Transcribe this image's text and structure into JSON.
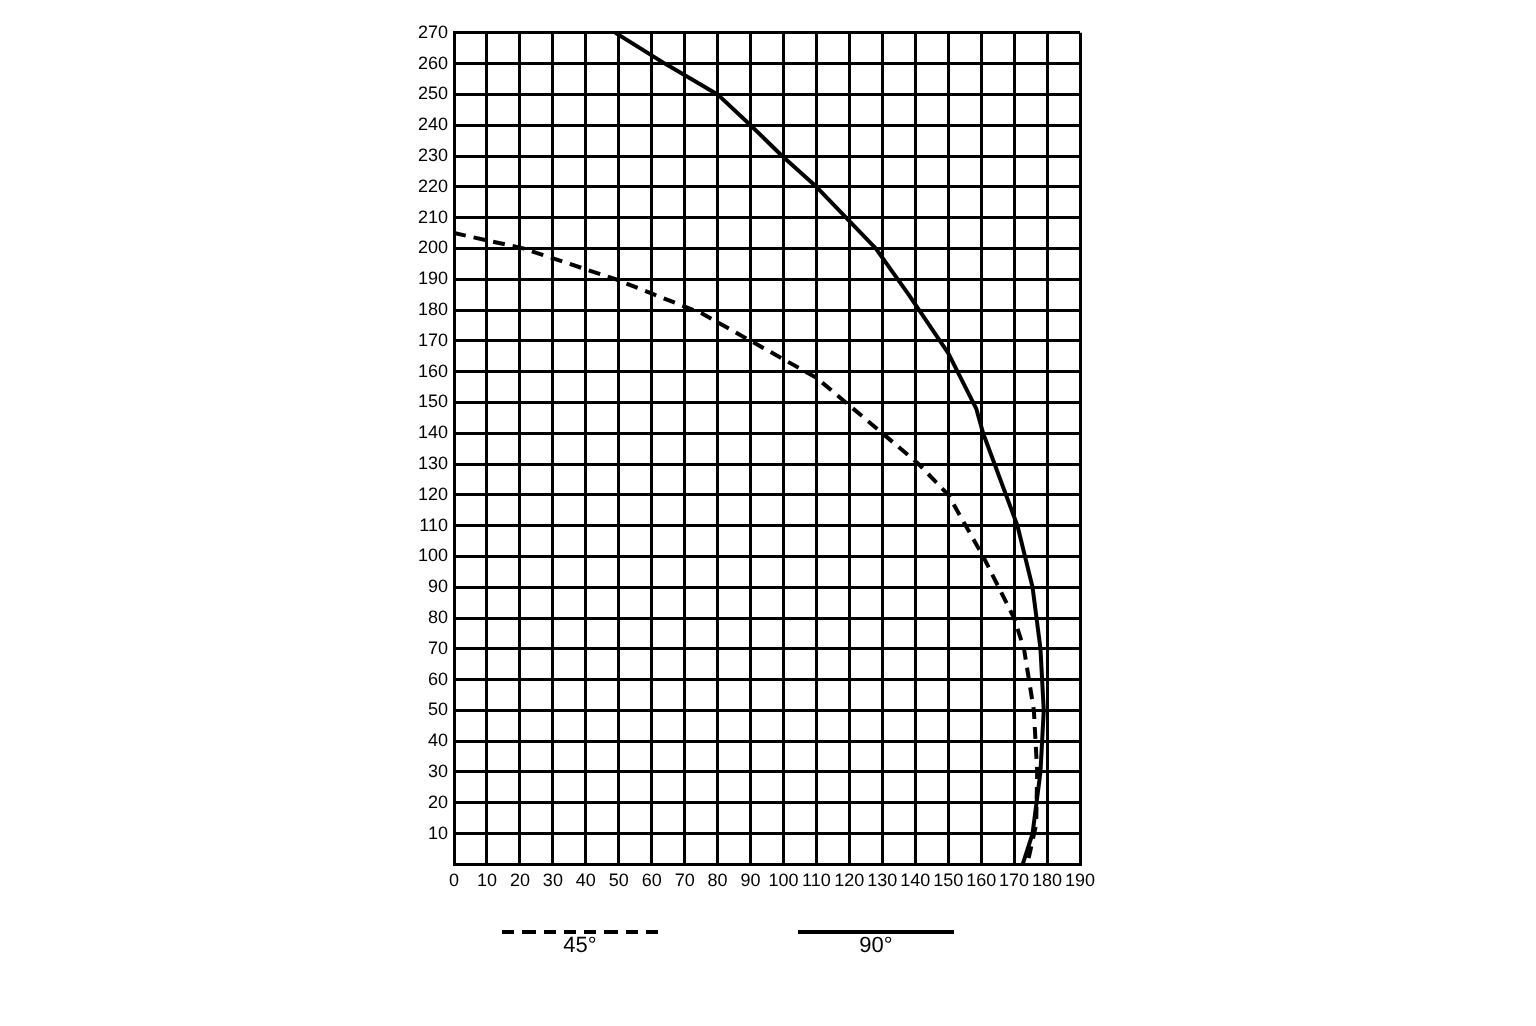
{
  "chart_data": {
    "type": "line",
    "xlim": [
      0,
      190
    ],
    "ylim": [
      0,
      270
    ],
    "xticks": [
      0,
      10,
      20,
      30,
      40,
      50,
      60,
      70,
      80,
      90,
      100,
      110,
      120,
      130,
      140,
      150,
      160,
      170,
      180,
      190
    ],
    "yticks": [
      10,
      20,
      30,
      40,
      50,
      60,
      70,
      80,
      90,
      100,
      110,
      120,
      130,
      140,
      150,
      160,
      170,
      180,
      190,
      200,
      210,
      220,
      230,
      240,
      250,
      260,
      270
    ],
    "grid": true,
    "legend": "bottom",
    "marker": "none",
    "series": [
      {
        "name": "45°",
        "color": "#000000",
        "line_style": "dashed",
        "x": [
          0,
          21,
          49,
          75,
          90,
          110,
          120,
          130,
          141,
          150,
          160.6,
          170,
          173,
          176,
          177,
          176.7,
          174
        ],
        "values": [
          205,
          200,
          190,
          179,
          170,
          158,
          149,
          140,
          130,
          120,
          100,
          80,
          70,
          50,
          30,
          13,
          0
        ]
      },
      {
        "name": "90°",
        "color": "#000000",
        "line_style": "solid",
        "x": [
          49,
          64,
          80,
          90,
          99.6,
          110,
          119,
          128,
          138,
          150,
          158.5,
          160.6,
          171,
          175.6,
          178,
          179,
          178,
          175.6,
          172.6
        ],
        "values": [
          270,
          260,
          250,
          240,
          230,
          220,
          210,
          200,
          185,
          166,
          148,
          140,
          110,
          90,
          70,
          50,
          30,
          10,
          0
        ]
      }
    ]
  }
}
